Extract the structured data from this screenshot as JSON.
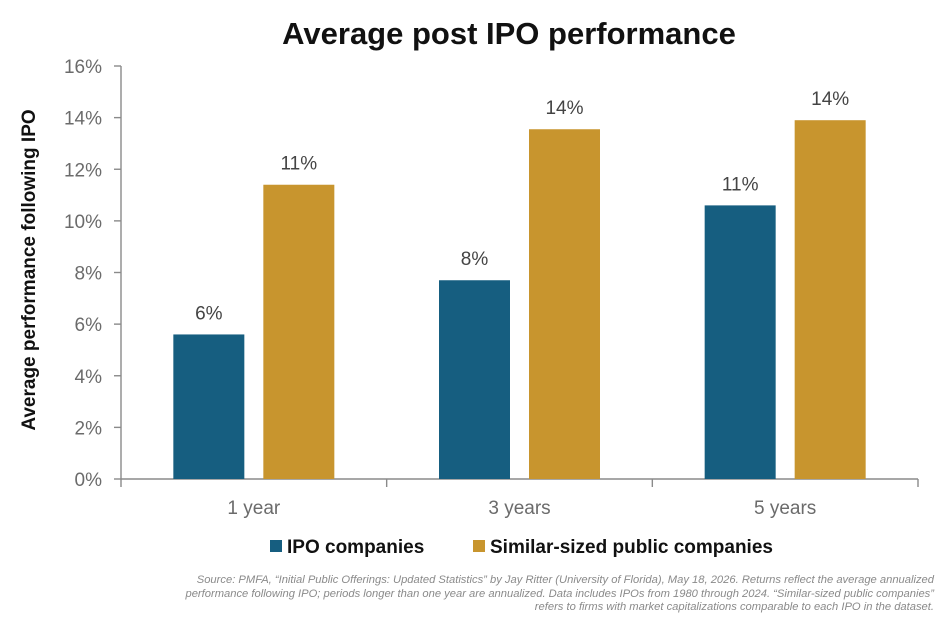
{
  "chart_data": {
    "type": "bar",
    "title": "Average post IPO performance",
    "ylabel": "Average performance following IPO",
    "xlabel": "",
    "categories": [
      "1 year",
      "3 years",
      "5 years"
    ],
    "ylim": [
      0,
      16
    ],
    "yticks": [
      "0%",
      "2%",
      "4%",
      "6%",
      "8%",
      "10%",
      "12%",
      "14%",
      "16%"
    ],
    "grid": false,
    "legend_placement": "bottom",
    "series": [
      {
        "name": "IPO companies",
        "color": "#165e80",
        "values": [
          5.6,
          7.7,
          10.6
        ],
        "labels": [
          "6%",
          "8%",
          "11%"
        ]
      },
      {
        "name": "Similar-sized public companies",
        "color": "#c8952e",
        "values": [
          11.4,
          13.55,
          13.9
        ],
        "labels": [
          "11%",
          "14%",
          "14%"
        ]
      }
    ]
  },
  "source_note": "Source: PMFA, “Initial Public Offerings: Updated Statistics” by Jay Ritter (University of Florida), May 18, 2026. Returns reflect the average annualized performance following IPO; periods longer than one year are annualized. Data includes IPOs from 1980 through 2024. “Similar-sized public companies” refers to firms with market capitalizations comparable to each IPO in the dataset."
}
